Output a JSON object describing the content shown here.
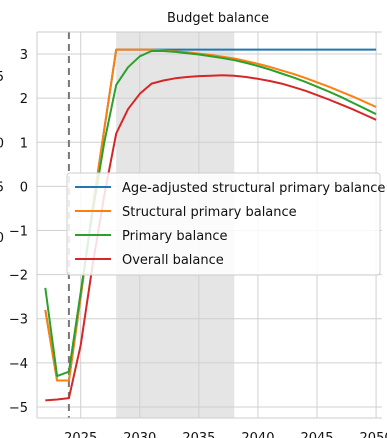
{
  "chart_data": {
    "type": "line",
    "title": "Budget balance",
    "xlabel": "",
    "ylabel": "",
    "xlim": [
      2021.3,
      2050.5
    ],
    "ylim": [
      -5.25,
      3.5
    ],
    "x_ticks": [
      2025,
      2030,
      2035,
      2040,
      2045,
      2050
    ],
    "x_tick_labels": [
      "2025",
      "2030",
      "2035",
      "2040",
      "2045",
      "2050"
    ],
    "y_ticks": [
      -5,
      -4,
      -3,
      -2,
      -1,
      0,
      1,
      2,
      3
    ],
    "y_tick_labels": [
      "−5",
      "−4",
      "−3",
      "−2",
      "−1",
      "0",
      "1",
      "2",
      "3"
    ],
    "left_edge_tick_labels": [
      {
        "y": 2.5,
        "text": "5"
      },
      {
        "y": 1.0,
        "text": "0"
      },
      {
        "y": 0.0,
        "text": "5"
      },
      {
        "y": -1.15,
        "text": "0"
      }
    ],
    "grid": true,
    "legend": "center",
    "shaded_region": [
      2028,
      2038
    ],
    "vertical_line": 2024,
    "colors": {
      "age_adjusted": "#1f77b4",
      "structural": "#ff7f0e",
      "primary": "#2ca02c",
      "overall": "#d62728",
      "shade": "#e5e5e5",
      "vline": "#777777"
    },
    "series": [
      {
        "name": "Age-adjusted structural primary balance",
        "color": "#1f77b4",
        "x": [
          2022,
          2023,
          2024,
          2025,
          2026,
          2027,
          2028,
          2029,
          2030,
          2031,
          2032,
          2033,
          2034,
          2035,
          2036,
          2037,
          2038,
          2039,
          2040,
          2041,
          2042,
          2043,
          2044,
          2045,
          2046,
          2047,
          2048,
          2049,
          2050
        ],
        "y": [
          -2.8,
          -4.4,
          -4.4,
          -2.5,
          -0.5,
          1.3,
          3.1,
          3.1,
          3.1,
          3.1,
          3.1,
          3.1,
          3.1,
          3.1,
          3.1,
          3.1,
          3.1,
          3.1,
          3.1,
          3.1,
          3.1,
          3.1,
          3.1,
          3.1,
          3.1,
          3.1,
          3.1,
          3.1,
          3.1
        ]
      },
      {
        "name": "Structural primary balance",
        "color": "#ff7f0e",
        "x": [
          2022,
          2023,
          2024,
          2025,
          2026,
          2027,
          2028,
          2029,
          2030,
          2031,
          2032,
          2033,
          2034,
          2035,
          2036,
          2037,
          2038,
          2039,
          2040,
          2041,
          2042,
          2043,
          2044,
          2045,
          2046,
          2047,
          2048,
          2049,
          2050
        ],
        "y": [
          -2.8,
          -4.4,
          -4.4,
          -2.5,
          -0.5,
          1.3,
          3.1,
          3.1,
          3.1,
          3.1,
          3.08,
          3.06,
          3.04,
          3.01,
          2.98,
          2.94,
          2.9,
          2.84,
          2.78,
          2.71,
          2.63,
          2.55,
          2.46,
          2.36,
          2.26,
          2.15,
          2.04,
          1.92,
          1.8
        ]
      },
      {
        "name": "Primary balance",
        "color": "#2ca02c",
        "x": [
          2022,
          2023,
          2024,
          2025,
          2026,
          2027,
          2028,
          2029,
          2030,
          2031,
          2032,
          2033,
          2034,
          2035,
          2036,
          2037,
          2038,
          2039,
          2040,
          2041,
          2042,
          2043,
          2044,
          2045,
          2046,
          2047,
          2048,
          2049,
          2050
        ],
        "y": [
          -2.3,
          -4.3,
          -4.2,
          -2.4,
          -0.6,
          1.0,
          2.3,
          2.7,
          2.95,
          3.07,
          3.07,
          3.05,
          3.02,
          2.99,
          2.95,
          2.91,
          2.86,
          2.8,
          2.73,
          2.65,
          2.56,
          2.47,
          2.37,
          2.26,
          2.15,
          2.03,
          1.9,
          1.77,
          1.64
        ]
      },
      {
        "name": "Overall balance",
        "color": "#d62728",
        "x": [
          2022,
          2023,
          2024,
          2025,
          2026,
          2027,
          2028,
          2029,
          2030,
          2031,
          2032,
          2033,
          2034,
          2035,
          2036,
          2037,
          2038,
          2039,
          2040,
          2041,
          2042,
          2043,
          2044,
          2045,
          2046,
          2047,
          2048,
          2049,
          2050
        ],
        "y": [
          -4.85,
          -4.83,
          -4.8,
          -3.6,
          -1.8,
          -0.2,
          1.2,
          1.75,
          2.1,
          2.33,
          2.4,
          2.45,
          2.48,
          2.5,
          2.51,
          2.52,
          2.51,
          2.48,
          2.44,
          2.39,
          2.33,
          2.25,
          2.17,
          2.07,
          1.97,
          1.86,
          1.75,
          1.63,
          1.51
        ]
      }
    ]
  }
}
